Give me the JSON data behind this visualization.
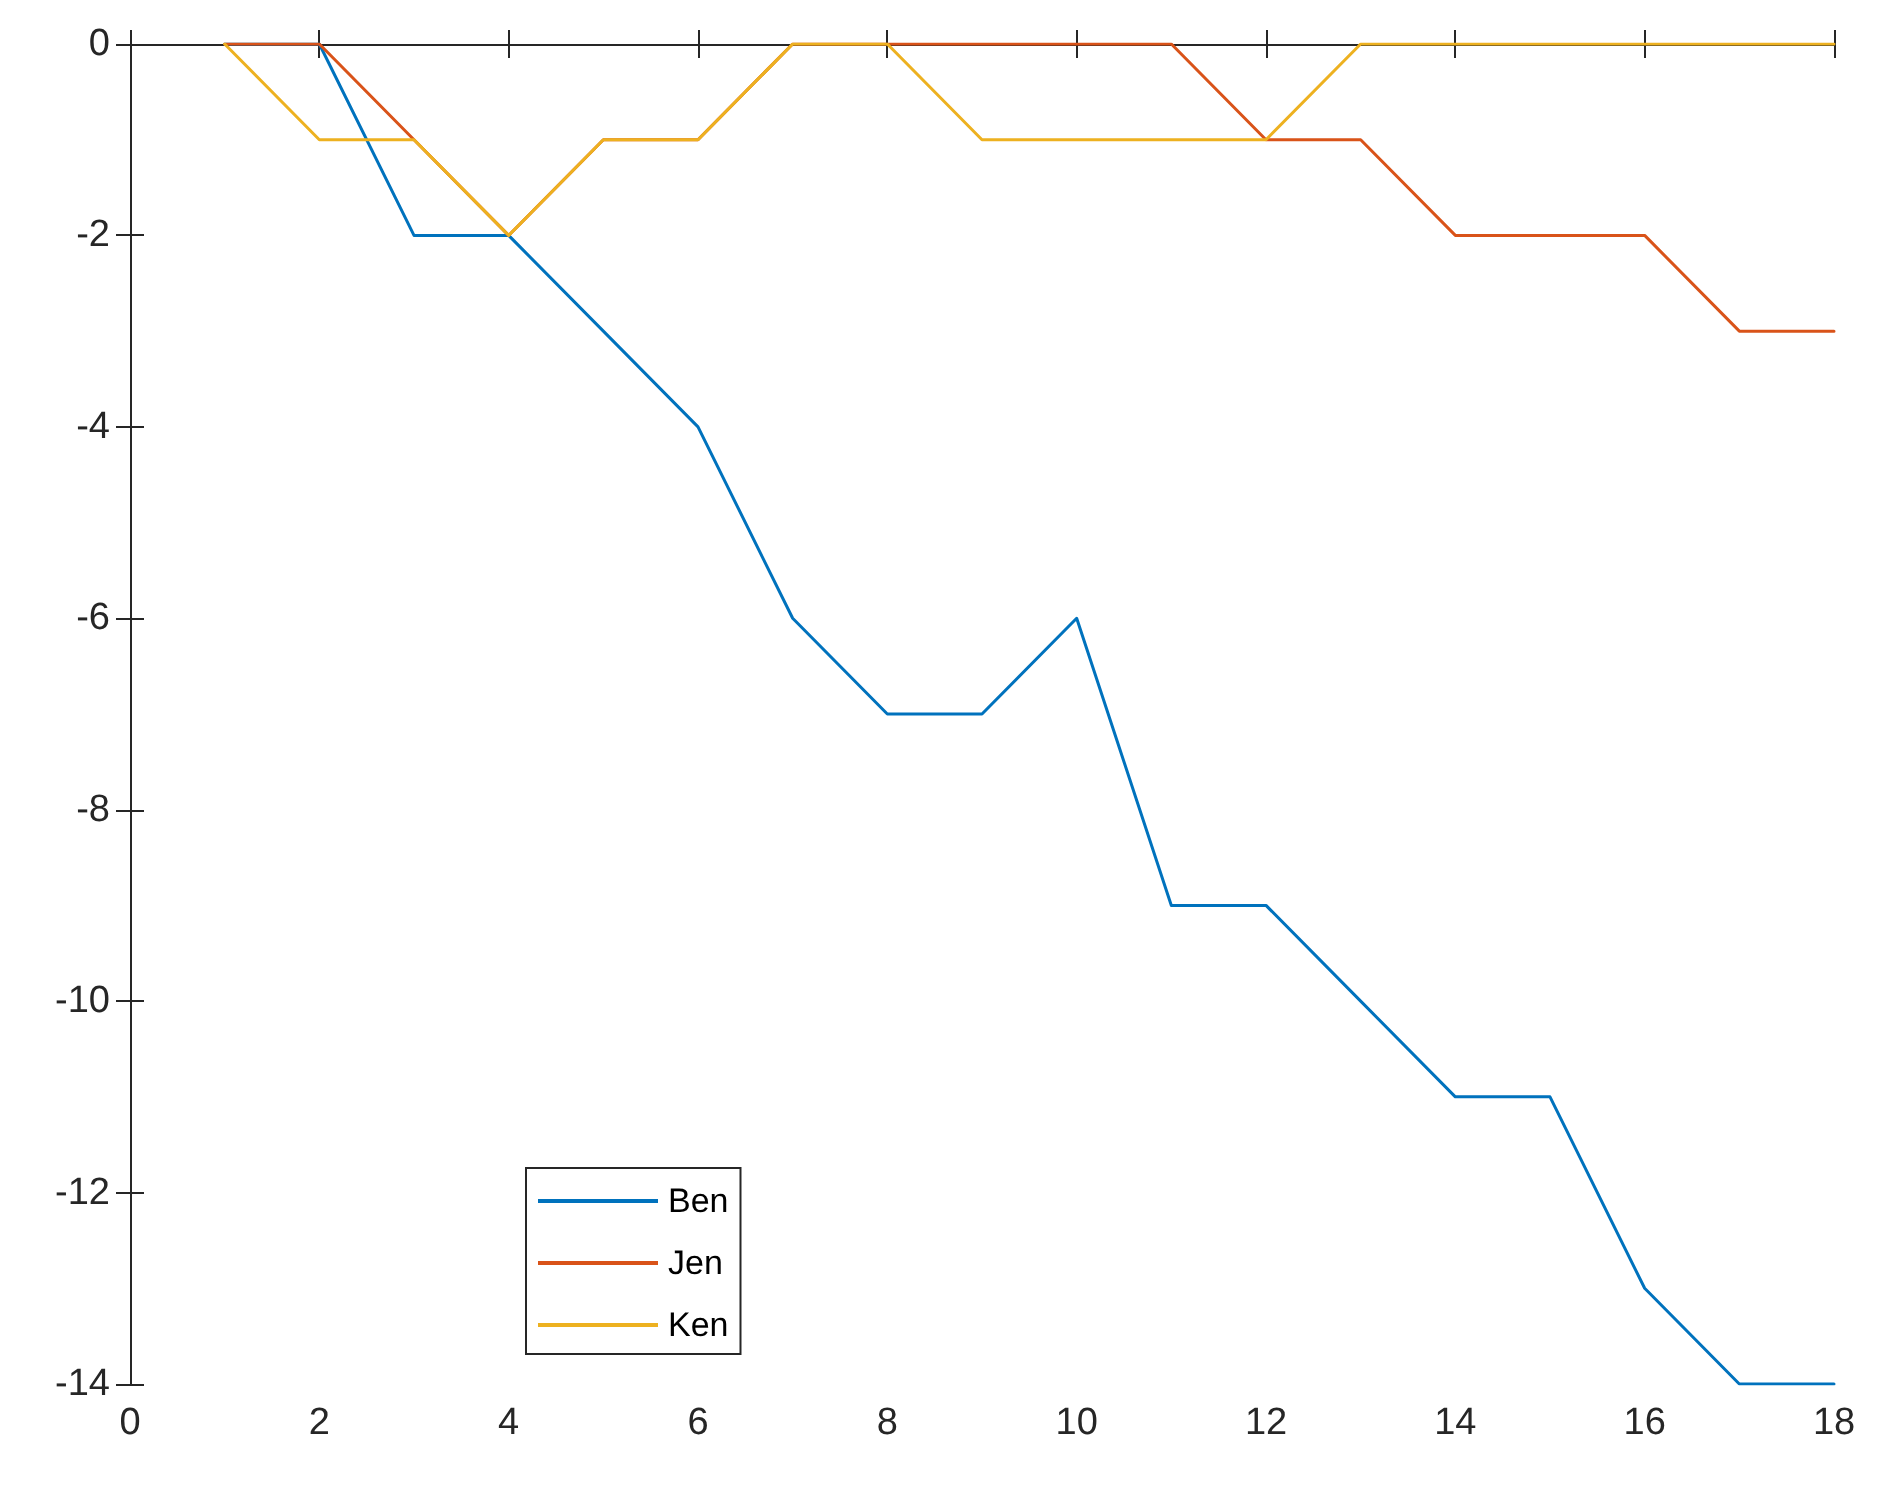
{
  "chart_data": {
    "type": "line",
    "x": [
      1,
      2,
      3,
      4,
      5,
      6,
      7,
      8,
      9,
      10,
      11,
      12,
      13,
      14,
      15,
      16,
      17,
      18
    ],
    "series": [
      {
        "name": "Ben",
        "color": "#0072bd",
        "values": [
          0,
          0,
          -2,
          -2,
          -3,
          -4,
          -6,
          -7,
          -7,
          -6,
          -9,
          -9,
          -10,
          -11,
          -11,
          -13,
          -14,
          -14
        ]
      },
      {
        "name": "Jen",
        "color": "#d95319",
        "values": [
          0,
          0,
          -1,
          -2,
          -1,
          -1,
          0,
          0,
          0,
          0,
          0,
          -1,
          -1,
          -2,
          -2,
          -2,
          -3,
          -3
        ]
      },
      {
        "name": "Ken",
        "color": "#edb120",
        "values": [
          0,
          -1,
          -1,
          -2,
          -1,
          -1,
          0,
          0,
          -1,
          -1,
          -1,
          -1,
          0,
          0,
          0,
          0,
          0,
          0
        ]
      }
    ],
    "xlim": [
      0,
      18
    ],
    "xticks": [
      0,
      2,
      4,
      6,
      8,
      10,
      12,
      14,
      16,
      18
    ],
    "ylim": [
      -14,
      0
    ],
    "yticks": [
      -14,
      -12,
      -10,
      -8,
      -6,
      -4,
      -2,
      0
    ],
    "grid": false,
    "legend": "bottom left",
    "marker": "none",
    "line_style": "solid"
  }
}
